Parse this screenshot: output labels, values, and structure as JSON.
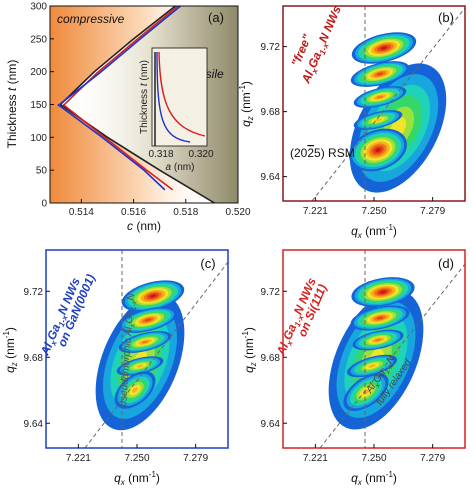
{
  "chart_data": [
    {
      "type": "line",
      "panel_label": "(a)",
      "xlabel": "c (nm)",
      "ylabel": "Thickness t (nm)",
      "xlim": [
        0.5128,
        0.52
      ],
      "ylim": [
        0,
        300
      ],
      "xticks": [
        "0.514",
        "0.516",
        "0.518",
        "0.520"
      ],
      "yticks": [
        "0",
        "50",
        "100",
        "150",
        "200",
        "250",
        "300"
      ],
      "annotations": {
        "left": "compressive",
        "right": "tensile"
      },
      "series": [
        {
          "color": "#222222",
          "points": [
            [
              0.5132,
              150
            ],
            [
              0.5145,
              200
            ],
            [
              0.516,
              250
            ],
            [
              0.5176,
              300
            ]
          ]
        },
        {
          "color": "#222222",
          "points": [
            [
              0.5132,
              150
            ],
            [
              0.515,
              100
            ],
            [
              0.517,
              50
            ],
            [
              0.5191,
              0
            ]
          ]
        },
        {
          "color": "#d62020",
          "points": [
            [
              0.5133,
              148
            ],
            [
              0.5146,
              198
            ],
            [
              0.5161,
              248
            ],
            [
              0.5177,
              300
            ]
          ]
        },
        {
          "color": "#d62020",
          "points": [
            [
              0.5133,
              150
            ],
            [
              0.5149,
              100
            ],
            [
              0.5165,
              50
            ],
            [
              0.5175,
              20
            ]
          ]
        },
        {
          "color": "#2233cc",
          "points": [
            [
              0.5131,
              148
            ],
            [
              0.5147,
              198
            ],
            [
              0.5162,
              248
            ],
            [
              0.5178,
              300
            ]
          ]
        },
        {
          "color": "#2233cc",
          "points": [
            [
              0.5131,
              150
            ],
            [
              0.5148,
              100
            ],
            [
              0.5164,
              50
            ],
            [
              0.5172,
              20
            ]
          ]
        }
      ],
      "inset": {
        "xlabel": "a (nm)",
        "ylabel": "Thickness t (nm)",
        "xticks": [
          "0.318",
          "0.320"
        ]
      }
    },
    {
      "type": "heatmap",
      "panel_label": "(b)",
      "frame_color": "#8b1a1a",
      "xlabel": "q_x (nm⁻¹)",
      "ylabel": "q_z (nm⁻¹)",
      "xlim": [
        7.205,
        7.295
      ],
      "ylim": [
        9.625,
        9.745
      ],
      "xticks": [
        "7.221",
        "7.250",
        "7.279"
      ],
      "yticks": [
        "9.64",
        "9.68",
        "9.72"
      ],
      "annotation_title": "\"free\"",
      "annotation_material": "AlxGa1-xN NWs",
      "annotation_rsm": "(2025) RSM"
    },
    {
      "type": "heatmap",
      "panel_label": "(c)",
      "frame_color": "#1f3fbf",
      "xlabel": "q_x (nm⁻¹)",
      "ylabel": "q_z (nm⁻¹)",
      "xlim": [
        7.205,
        7.295
      ],
      "ylim": [
        9.625,
        9.745
      ],
      "xticks": [
        "7.221",
        "7.250",
        "7.279"
      ],
      "yticks": [
        "9.64",
        "9.68",
        "9.72"
      ],
      "annotation_material": "AlxGa1-xN NWs",
      "annotation_substrate": "on GaN(0001)",
      "annotation_line": "pseudomorphic AlxGa1-xN"
    },
    {
      "type": "heatmap",
      "panel_label": "(d)",
      "frame_color": "#d62020",
      "xlabel": "q_x (nm⁻¹)",
      "ylabel": "q_z (nm⁻¹)",
      "xlim": [
        7.205,
        7.295
      ],
      "ylim": [
        9.625,
        9.745
      ],
      "xticks": [
        "7.221",
        "7.250",
        "7.279"
      ],
      "yticks": [
        "9.64",
        "9.68",
        "9.72"
      ],
      "annotation_material": "AlxGa1-xN NWs",
      "annotation_substrate": "on Si(111)",
      "annotation_line1": "AlxGa1-xN",
      "annotation_line2": "fully relaxed"
    }
  ]
}
